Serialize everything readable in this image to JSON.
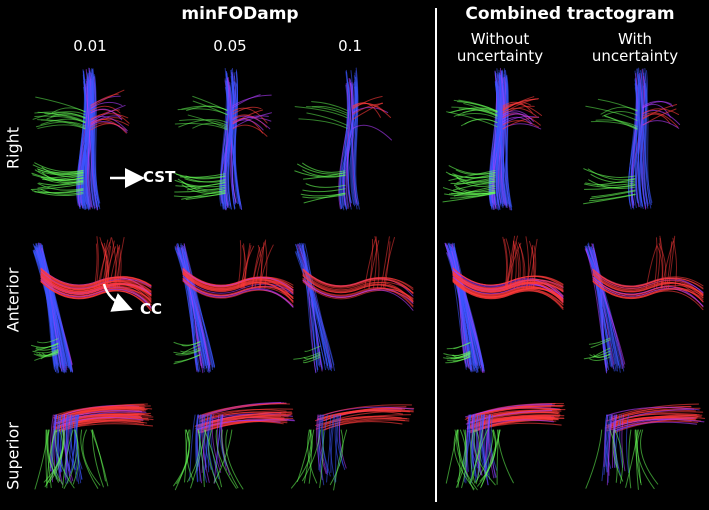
{
  "headers": {
    "left": "minFODamp",
    "right": "Combined tractogram"
  },
  "columns": [
    "0.01",
    "0.05",
    "0.1",
    "Without\nuncertainty",
    "With\nuncertainty"
  ],
  "rows": [
    "Right",
    "Anterior",
    "Superior"
  ],
  "annotations": {
    "cst": "CST",
    "cc": "CC"
  },
  "colors": {
    "background": "#000000",
    "text": "#ffffff",
    "fiber_blue": "#3a55ff",
    "fiber_red": "#ff3a3a",
    "fiber_green": "#66ff55",
    "fiber_violet": "#b03cff"
  }
}
